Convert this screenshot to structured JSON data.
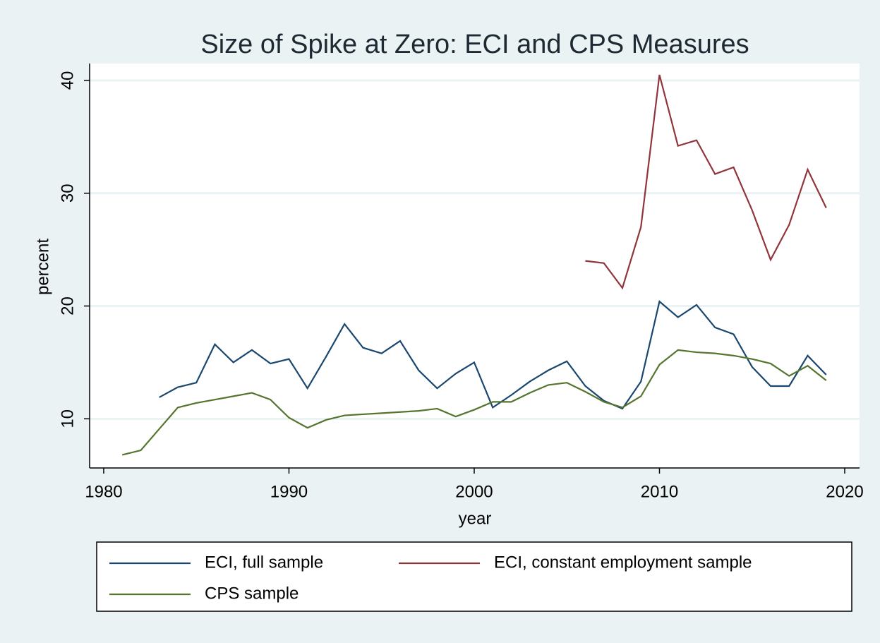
{
  "chart_data": {
    "type": "line",
    "title": "Size of Spike at Zero: ECI and CPS Measures",
    "x_label": "year",
    "y_label": "percent",
    "x": [
      1981,
      1982,
      1983,
      1984,
      1985,
      1986,
      1987,
      1988,
      1989,
      1990,
      1991,
      1992,
      1993,
      1994,
      1995,
      1996,
      1997,
      1998,
      1999,
      2000,
      2001,
      2002,
      2003,
      2004,
      2005,
      2006,
      2007,
      2008,
      2009,
      2010,
      2011,
      2012,
      2013,
      2014,
      2015,
      2016,
      2017,
      2018,
      2019
    ],
    "series": [
      {
        "name": "ECI, full sample",
        "color": "#1a476f",
        "values": [
          null,
          null,
          11.9,
          12.8,
          13.2,
          16.6,
          15.0,
          16.1,
          14.9,
          15.3,
          12.7,
          15.5,
          18.4,
          16.3,
          15.8,
          16.9,
          14.3,
          12.7,
          14.0,
          15.0,
          11.0,
          12.1,
          13.3,
          14.3,
          15.1,
          12.9,
          11.6,
          10.9,
          13.3,
          20.4,
          19.0,
          20.1,
          18.1,
          17.5,
          14.6,
          12.9,
          12.9,
          15.6,
          13.9
        ]
      },
      {
        "name": "ECI, constant employment sample",
        "color": "#90353b",
        "values": [
          null,
          null,
          null,
          null,
          null,
          null,
          null,
          null,
          null,
          null,
          null,
          null,
          null,
          null,
          null,
          null,
          null,
          null,
          null,
          null,
          null,
          null,
          null,
          null,
          null,
          24.0,
          23.8,
          21.6,
          27.0,
          40.5,
          34.2,
          34.7,
          31.7,
          32.3,
          28.5,
          24.1,
          27.2,
          32.1,
          28.7
        ]
      },
      {
        "name": "CPS sample",
        "color": "#55752f",
        "values": [
          6.8,
          7.2,
          9.1,
          11.0,
          11.4,
          11.7,
          12.0,
          12.3,
          11.7,
          10.1,
          9.2,
          9.9,
          10.3,
          10.4,
          10.5,
          10.6,
          10.7,
          10.9,
          10.2,
          10.8,
          11.5,
          11.5,
          12.3,
          13.0,
          13.2,
          12.4,
          11.5,
          11.0,
          12.0,
          14.8,
          16.1,
          15.9,
          15.8,
          15.6,
          15.3,
          14.9,
          13.8,
          14.7,
          13.4
        ]
      }
    ],
    "xlim": [
      1979.24,
      2020.8
    ],
    "xticks": [
      1980,
      1990,
      2000,
      2010,
      2020
    ],
    "ylim": [
      5.64,
      41.5
    ],
    "yticks": [
      10,
      20,
      30,
      40
    ],
    "grid": true,
    "legend": "bottom"
  }
}
